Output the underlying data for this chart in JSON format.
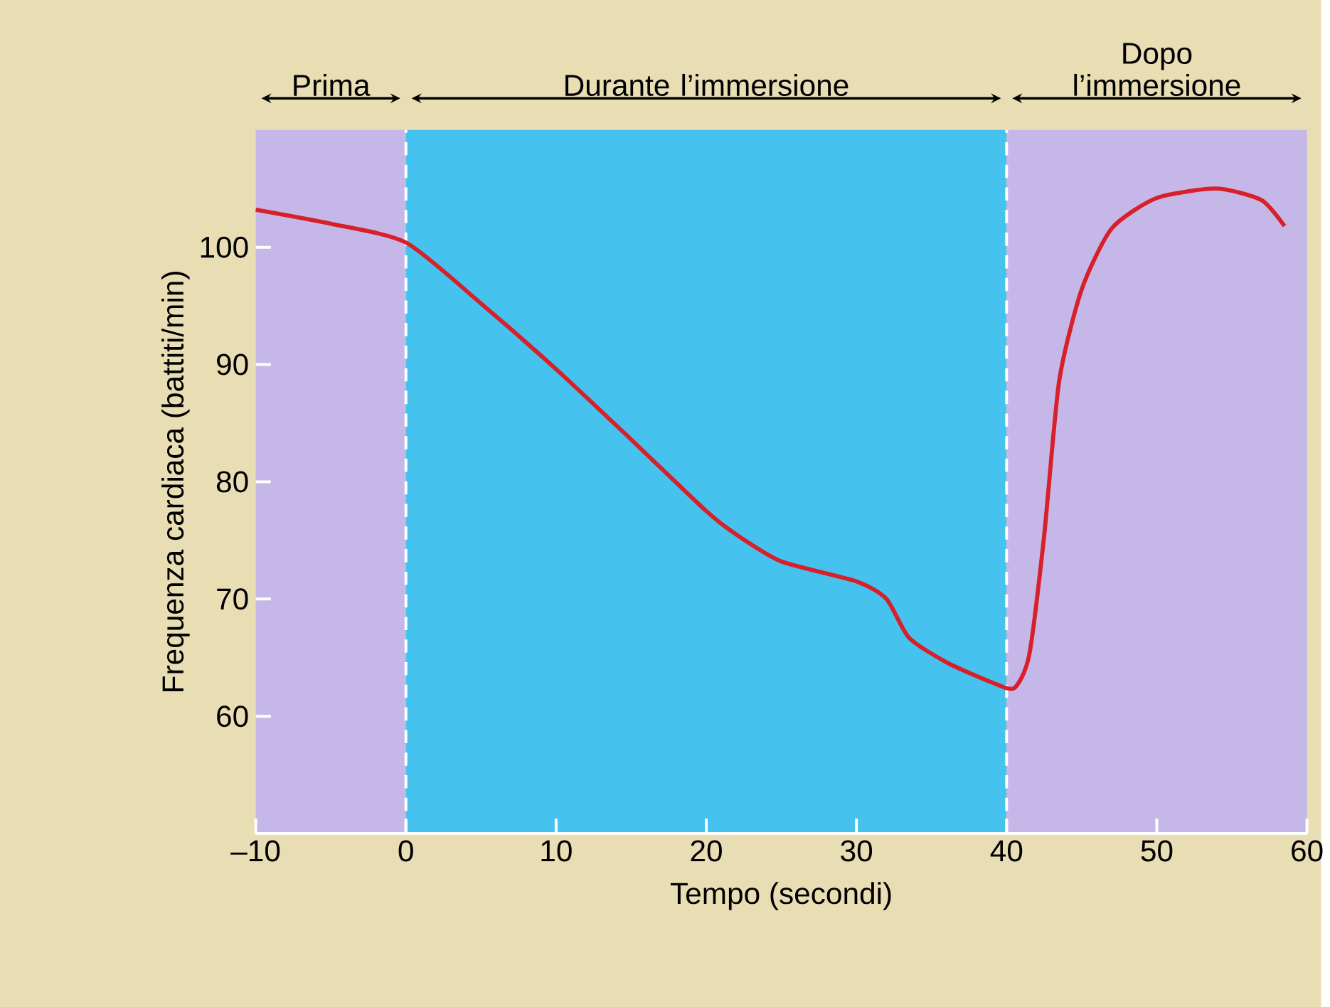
{
  "chart_data": {
    "type": "line",
    "xlabel": "Tempo (secondi)",
    "ylabel": "Frequenza cardiaca (battiti/min)",
    "xlim": [
      -10,
      60
    ],
    "ylim": [
      50,
      110
    ],
    "xticks": [
      {
        "value": -10,
        "label": "–10"
      },
      0,
      10,
      20,
      30,
      40,
      50,
      60
    ],
    "yticks": [
      60,
      70,
      80,
      90,
      100
    ],
    "bands": [
      {
        "axis": "x",
        "from": -10,
        "to": 0,
        "label": "Prima",
        "color": "#c5b8e8"
      },
      {
        "axis": "x",
        "from": 0,
        "to": 40,
        "label": "Durante l’immersione",
        "color": "#45c3ee"
      },
      {
        "axis": "x",
        "from": 40,
        "to": 60,
        "label": "Dopo l’immersione",
        "color": "#c5b8e8"
      }
    ],
    "ref_lines": [
      {
        "axis": "x",
        "value": 0,
        "color": "#ffffff",
        "line_style": "dashed"
      },
      {
        "axis": "x",
        "value": 40,
        "color": "#ffffff",
        "line_style": "dashed"
      }
    ],
    "series": [
      {
        "color": "#d8202a",
        "x": [
          -10,
          -5,
          0,
          5,
          10,
          15,
          20,
          22,
          25,
          30,
          32,
          33.5,
          36,
          39,
          40.5,
          41.5,
          42.5,
          43.5,
          45,
          47,
          50,
          54,
          57,
          58.5
        ],
        "values": [
          103.2,
          102,
          100.4,
          95.2,
          89.6,
          83.6,
          77.5,
          75.5,
          73.2,
          71.5,
          70,
          66.7,
          64.6,
          62.9,
          62.4,
          65.2,
          75.4,
          88.6,
          96.4,
          101.6,
          104.2,
          105,
          104,
          101.8
        ]
      }
    ]
  }
}
